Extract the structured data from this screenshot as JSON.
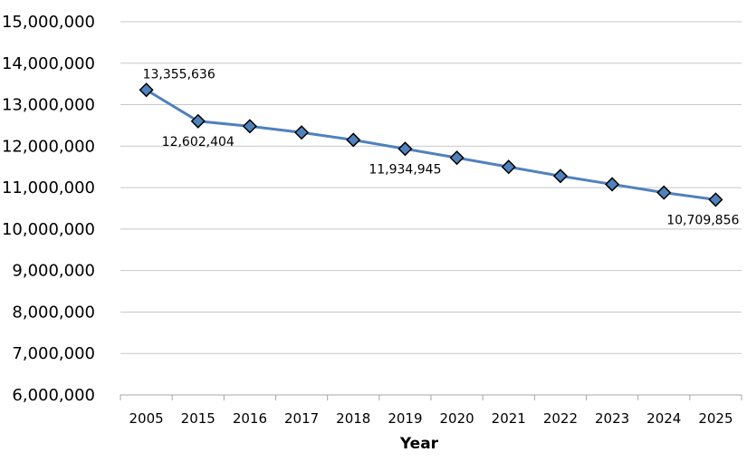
{
  "chart_data": {
    "type": "line",
    "title": "",
    "xlabel": "Year",
    "ylabel": "",
    "categories": [
      "2005",
      "2015",
      "2016",
      "2017",
      "2018",
      "2019",
      "2020",
      "2021",
      "2022",
      "2023",
      "2024",
      "2025"
    ],
    "series": [
      {
        "values": [
          13355636,
          12602404,
          12480000,
          12330000,
          12150000,
          11934945,
          11720000,
          11500000,
          11280000,
          11080000,
          10880000,
          10709856
        ],
        "color": "#4f81bd",
        "marker": "diamond"
      }
    ],
    "ylim": [
      6000000,
      15000000
    ],
    "ytick_step": 1000000,
    "yticks": [
      "6,000,000",
      "7,000,000",
      "8,000,000",
      "9,000,000",
      "10,000,000",
      "11,000,000",
      "12,000,000",
      "13,000,000",
      "14,000,000",
      "15,000,000"
    ],
    "data_labels": [
      {
        "index": 0,
        "text": "13,355,636",
        "position": "above"
      },
      {
        "index": 1,
        "text": "12,602,404",
        "position": "below"
      },
      {
        "index": 5,
        "text": "11,934,945",
        "position": "below"
      },
      {
        "index": 11,
        "text": "10,709,856",
        "position": "below"
      }
    ],
    "grid": true,
    "legend": "none"
  }
}
